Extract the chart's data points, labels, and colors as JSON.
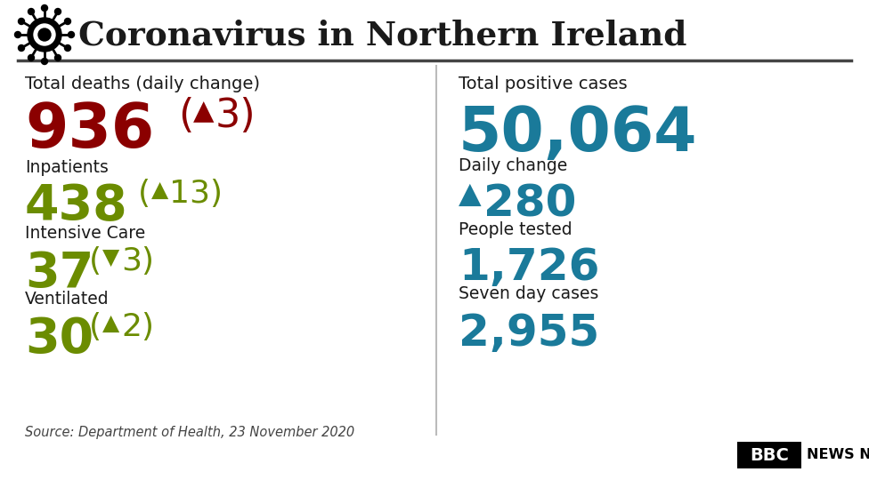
{
  "title": "Coronavirus in Northern Ireland",
  "bg_color": "#ffffff",
  "title_color": "#1a1a1a",
  "dark_color": "#1a1a1a",
  "red_color": "#8b0000",
  "green_color": "#6b8c00",
  "teal_color": "#1a7a9a",
  "source_text": "Source: Department of Health, 23 November 2020",
  "left_panel": {
    "section1_label": "Total deaths (daily change)",
    "section1_value": "936",
    "section1_change_up": true,
    "section1_change": "3",
    "section2_label": "Inpatients",
    "section2_value": "438",
    "section2_change_up": true,
    "section2_change": "13",
    "section3_label": "Intensive Care",
    "section3_value": "37",
    "section3_change_up": false,
    "section3_change": "3",
    "section4_label": "Ventilated",
    "section4_value": "30",
    "section4_change_up": true,
    "section4_change": "2"
  },
  "right_panel": {
    "section1_label": "Total positive cases",
    "section1_value": "50,064",
    "section2_label": "Daily change",
    "section2_value": "280",
    "section2_change_up": true,
    "section3_label": "People tested",
    "section3_value": "1,726",
    "section4_label": "Seven day cases",
    "section4_value": "2,955"
  }
}
